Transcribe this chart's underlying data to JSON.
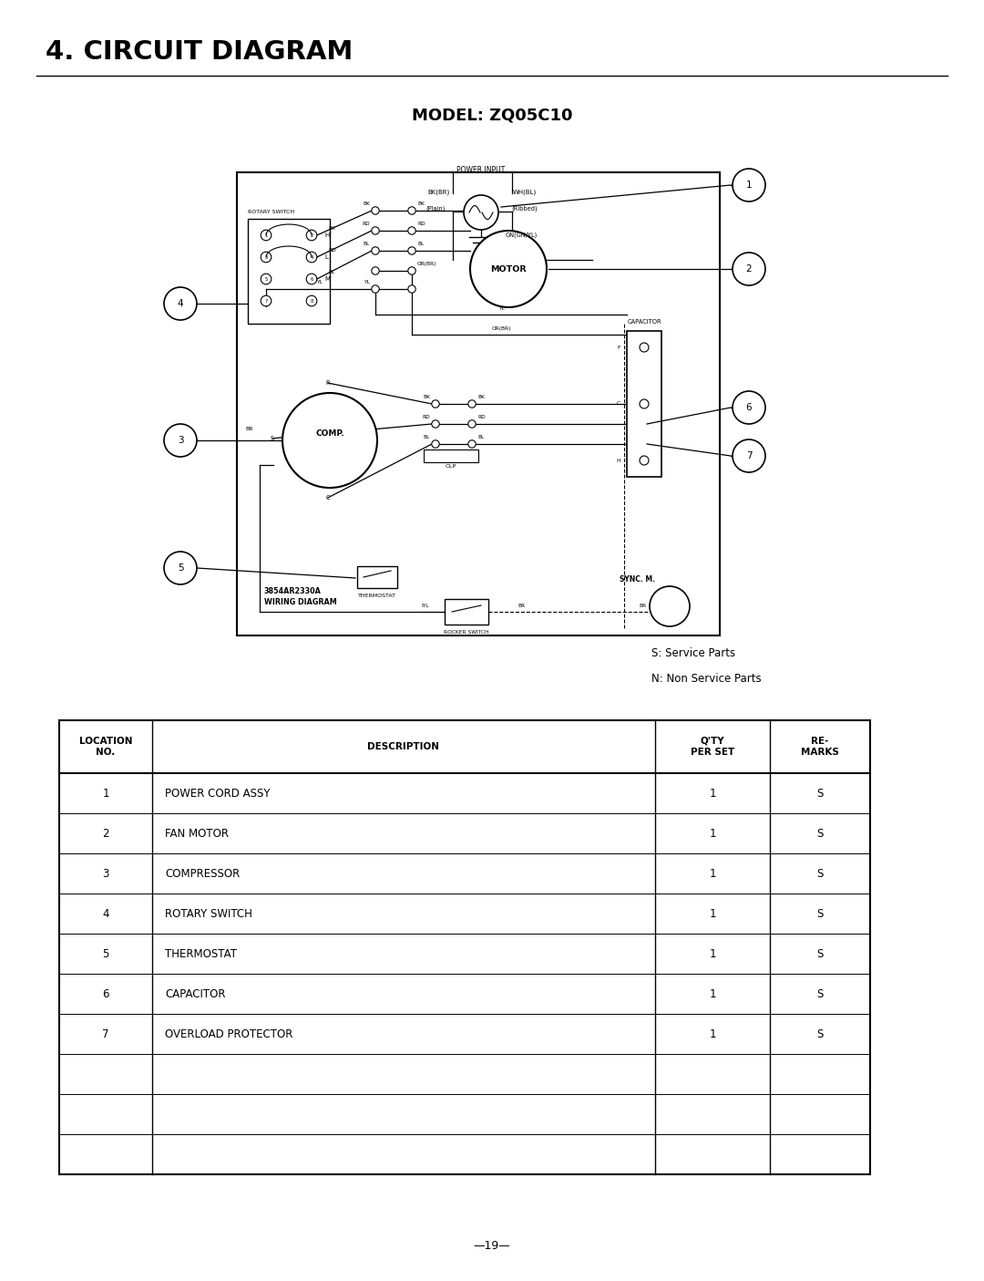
{
  "bg": "#ffffff",
  "page_title": "4. CIRCUIT DIAGRAM",
  "model": "MODEL: ZQ05C10",
  "note1": "S: Service Parts",
  "note2": "N: Non Service Parts",
  "page_num": "—19—",
  "tbl_headers": [
    "LOCATION\nNO.",
    "DESCRIPTION",
    "Q'TY\nPER SET",
    "RE-\nMARKS"
  ],
  "tbl_rows": [
    [
      "1",
      "POWER CORD ASSY",
      "1",
      "S"
    ],
    [
      "2",
      "FAN MOTOR",
      "1",
      "S"
    ],
    [
      "3",
      "COMPRESSOR",
      "1",
      "S"
    ],
    [
      "4",
      "ROTARY SWITCH",
      "1",
      "S"
    ],
    [
      "5",
      "THERMOSTAT",
      "1",
      "S"
    ],
    [
      "6",
      "CAPACITOR",
      "1",
      "S"
    ],
    [
      "7",
      "OVERLOAD PROTECTOR",
      "1",
      "S"
    ],
    [
      "",
      "",
      "",
      ""
    ],
    [
      "",
      "",
      "",
      ""
    ],
    [
      "",
      "",
      "",
      ""
    ]
  ],
  "wiring_diag_txt": "3854AR2330A\nWIRING DIAGRAM",
  "sync_txt": "SYNC. M.",
  "rocker_txt": "ROCKER SWITCH",
  "thermostat_txt": "THERMOSTAT",
  "rotary_txt": "ROTARY SWITCH",
  "power_input_txt": "POWER INPUT",
  "capacitor_txt": "CAPACITOR",
  "olp_txt": "OLP"
}
